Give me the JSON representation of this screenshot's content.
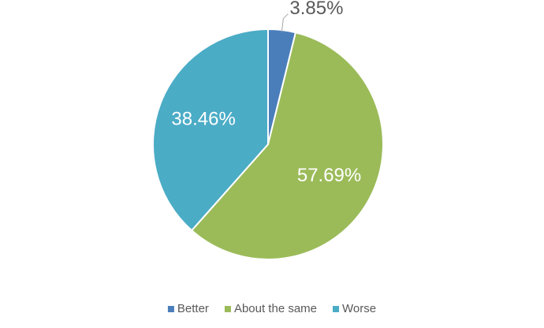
{
  "chart_data": {
    "type": "pie",
    "categories": [
      "Better",
      "About the same",
      "Worse"
    ],
    "values": [
      3.85,
      57.69,
      38.46
    ],
    "value_labels": [
      "3.85%",
      "57.69%",
      "38.46%"
    ],
    "colors": [
      "#4a7ebb",
      "#9bbb59",
      "#4bacc6"
    ],
    "legend": "bottom"
  }
}
